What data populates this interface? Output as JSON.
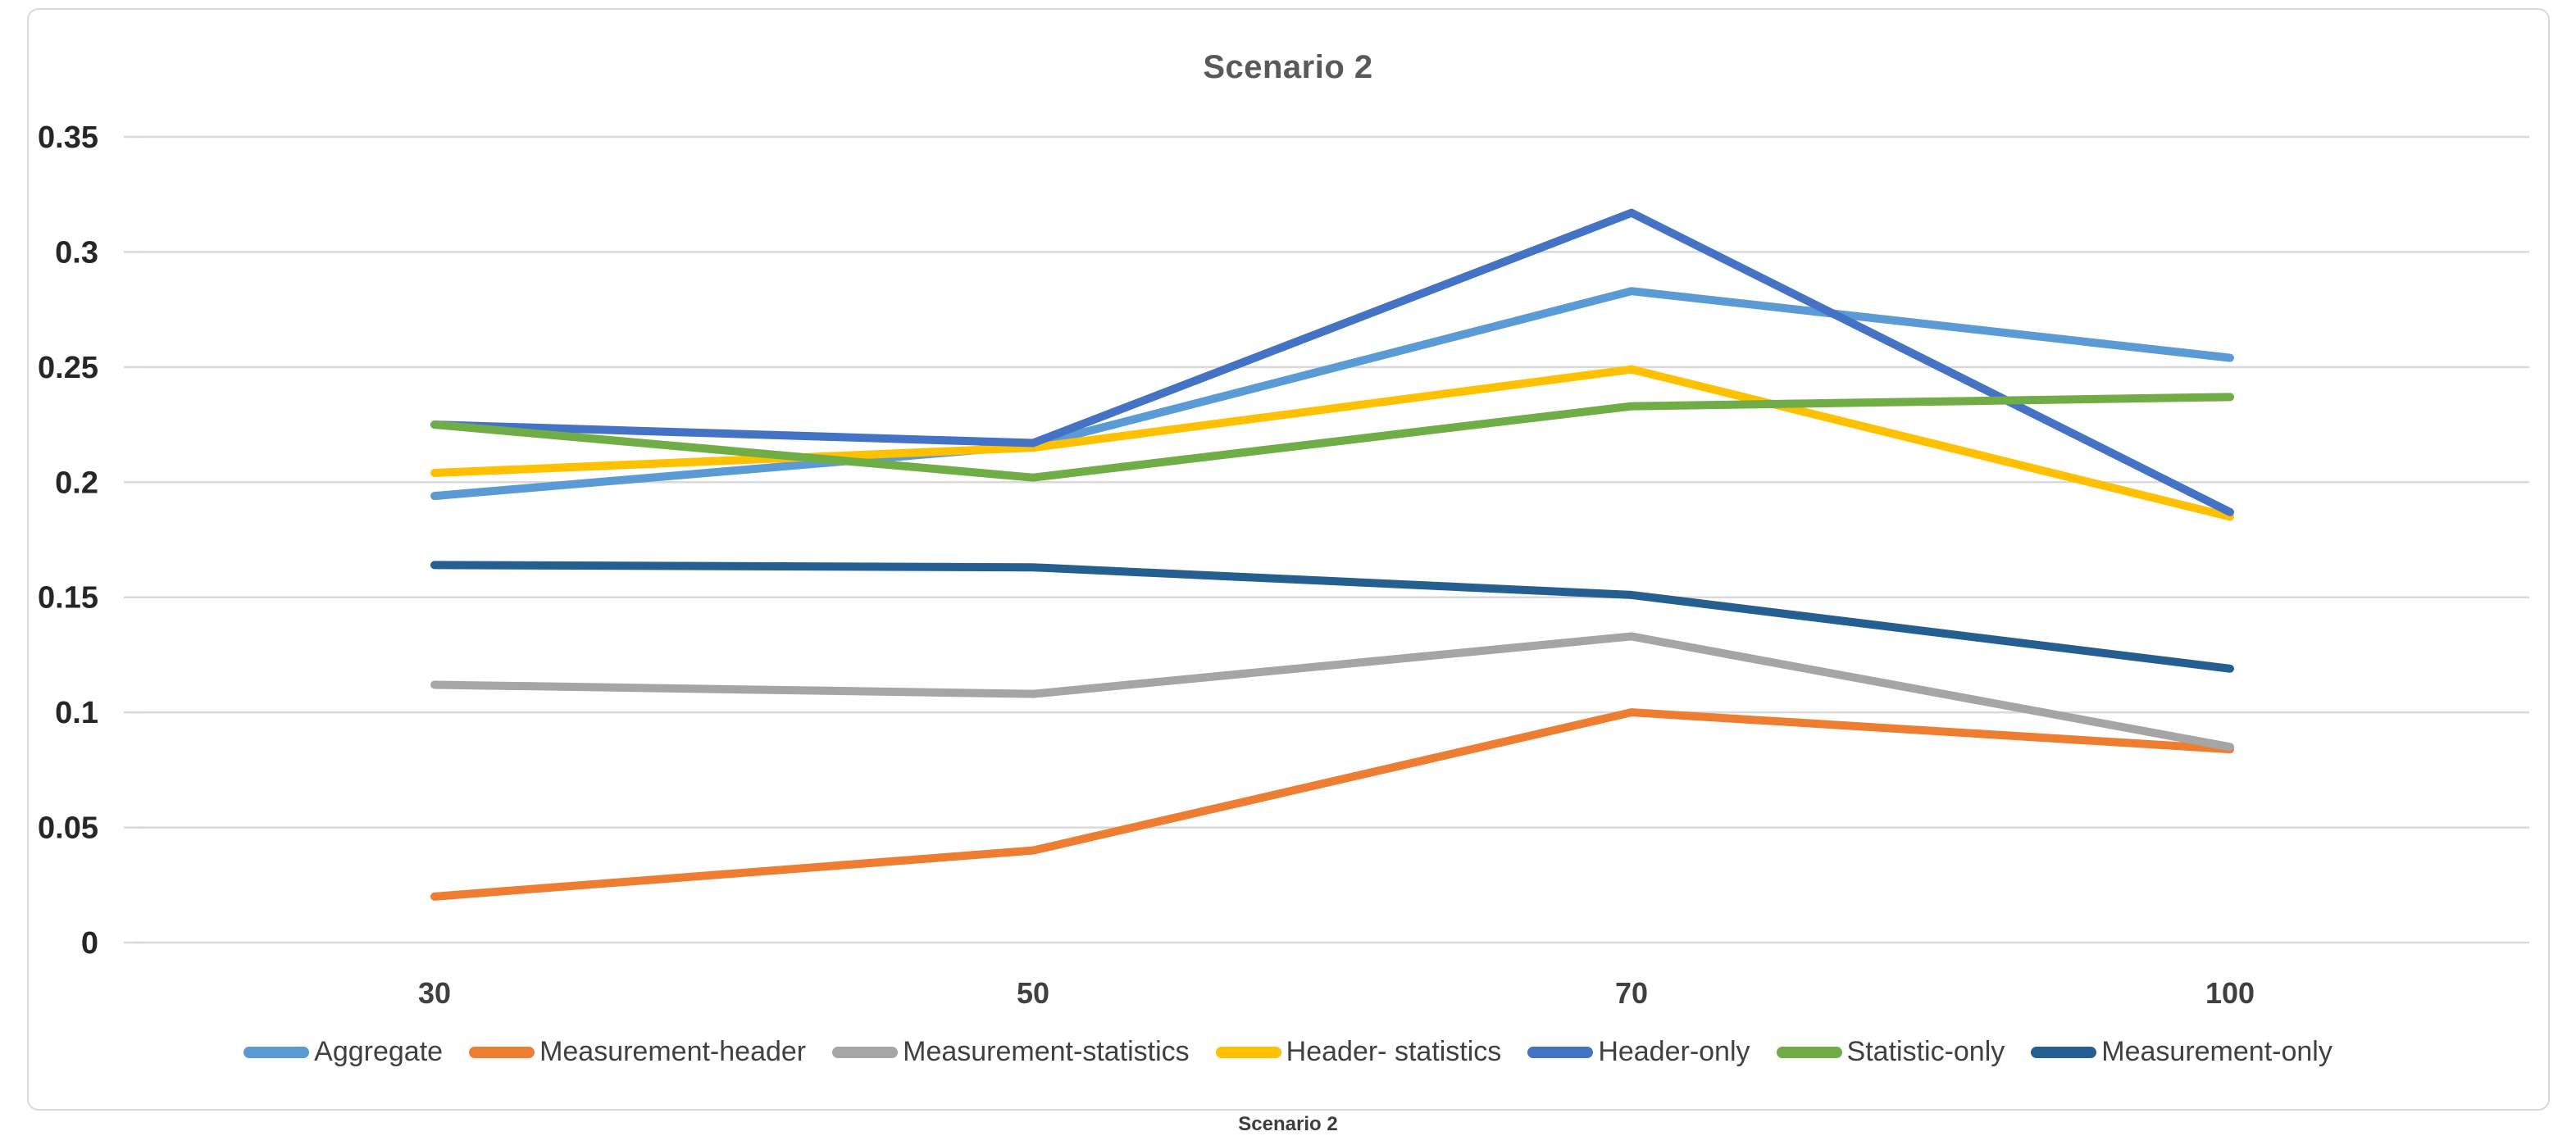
{
  "title": "Scenario 2",
  "caption": "Scenario 2",
  "colors": {
    "gridline": "#d9d9d9",
    "axis_label": "#404040",
    "title_text": "#595959",
    "frame_border": "#d9d9d9"
  },
  "chart_data": {
    "type": "line",
    "title": "Scenario 2",
    "xlabel": "",
    "ylabel": "",
    "categories": [
      "30",
      "50",
      "70",
      "100"
    ],
    "ylim": [
      0,
      0.35
    ],
    "yticks": [
      "0",
      "0.05",
      "0.1",
      "0.15",
      "0.2",
      "0.25",
      "0.3",
      "0.35"
    ],
    "grid": "horizontal",
    "legend_position": "bottom",
    "series": [
      {
        "name": "Aggregate",
        "color": "#5b9bd5",
        "values": [
          0.194,
          0.216,
          0.283,
          0.254
        ]
      },
      {
        "name": "Measurement-header",
        "color": "#ed7d31",
        "values": [
          0.02,
          0.04,
          0.1,
          0.084
        ]
      },
      {
        "name": "Measurement-statistics",
        "color": "#a5a5a5",
        "values": [
          0.112,
          0.108,
          0.133,
          0.085
        ]
      },
      {
        "name": "Header- statistics",
        "color": "#ffc000",
        "values": [
          0.204,
          0.215,
          0.249,
          0.185
        ]
      },
      {
        "name": "Header-only",
        "color": "#4472c4",
        "values": [
          0.225,
          0.217,
          0.317,
          0.187
        ]
      },
      {
        "name": "Statistic-only",
        "color": "#70ad47",
        "values": [
          0.225,
          0.202,
          0.233,
          0.237
        ]
      },
      {
        "name": "Measurement-only",
        "color": "#255e91",
        "values": [
          0.164,
          0.163,
          0.151,
          0.119
        ]
      }
    ]
  }
}
